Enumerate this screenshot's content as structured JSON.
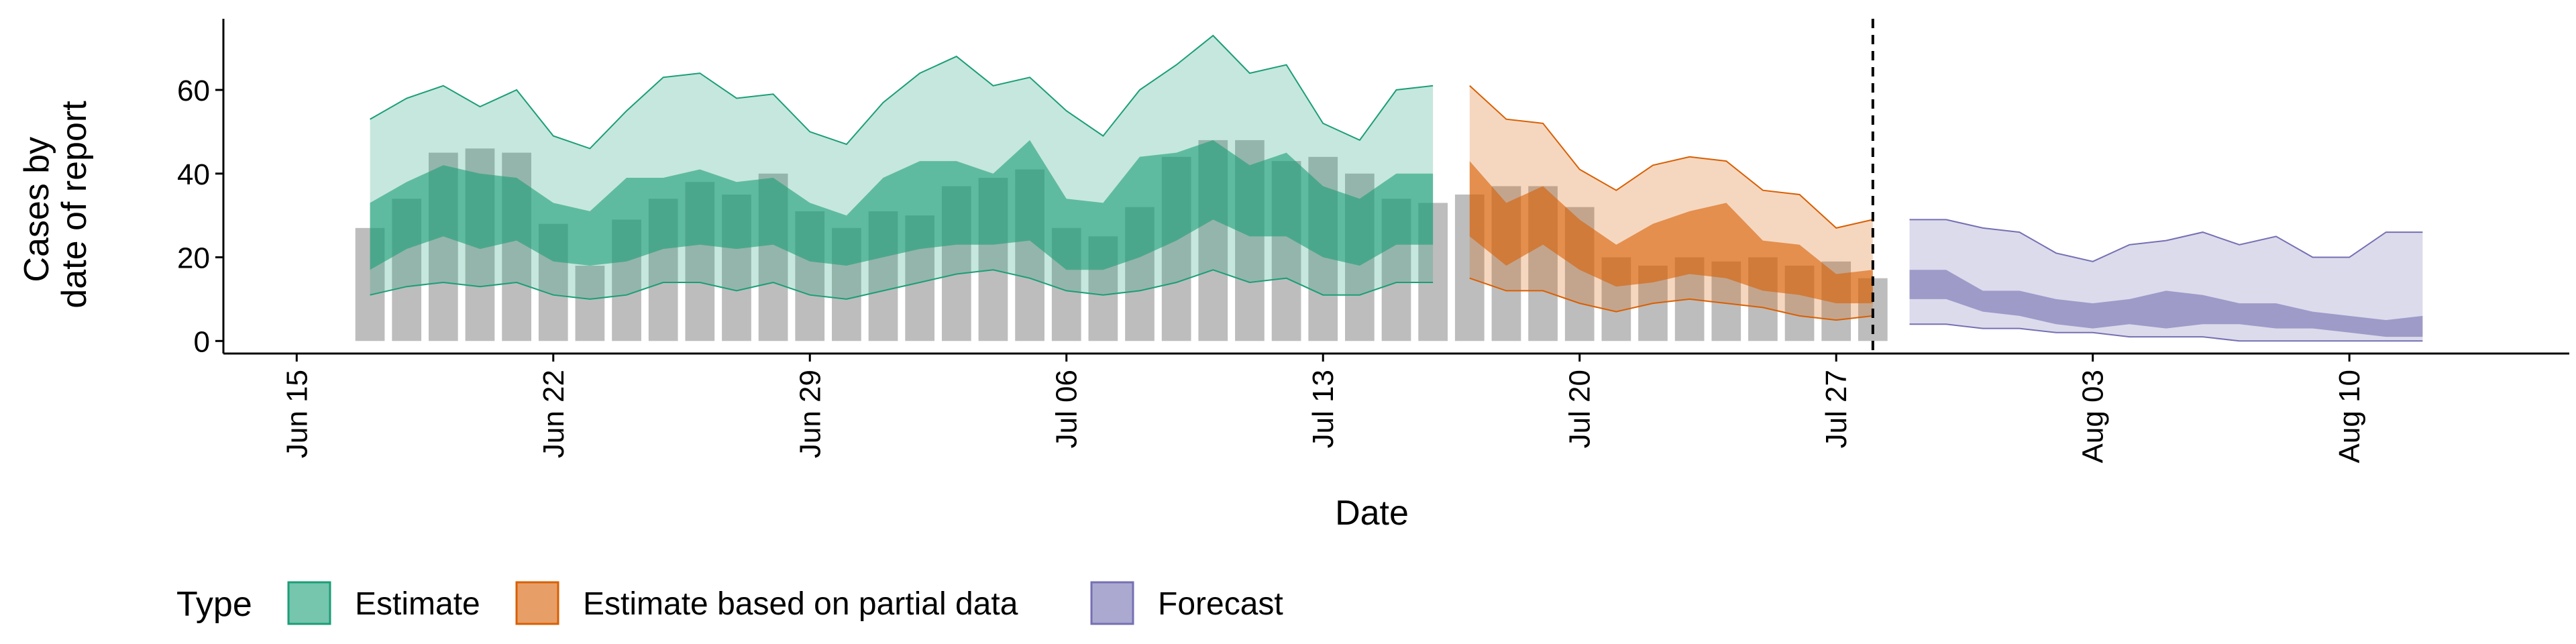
{
  "chart_data": {
    "type": "area",
    "ylabel_lines": [
      "Cases by",
      "date of report"
    ],
    "xlabel": "Date",
    "ylim": [
      -3,
      77
    ],
    "xlim": [
      "2021-06-13",
      "2021-08-16"
    ],
    "yticks": [
      0,
      20,
      40,
      60
    ],
    "xticks": [
      {
        "label": "Jun 15",
        "date": "2021-06-15"
      },
      {
        "label": "Jun 22",
        "date": "2021-06-22"
      },
      {
        "label": "Jun 29",
        "date": "2021-06-29"
      },
      {
        "label": "Jul 06",
        "date": "2021-07-06"
      },
      {
        "label": "Jul 13",
        "date": "2021-07-13"
      },
      {
        "label": "Jul 20",
        "date": "2021-07-20"
      },
      {
        "label": "Jul 27",
        "date": "2021-07-27"
      },
      {
        "label": "Aug 03",
        "date": "2021-08-03"
      },
      {
        "label": "Aug 10",
        "date": "2021-08-10"
      }
    ],
    "vline_date": "2021-07-28",
    "legend": {
      "title": "Type",
      "position": "bottom",
      "items": [
        {
          "label": "Estimate",
          "fill": "#1B9E77",
          "fill_opacity": 0.6,
          "stroke": "#1B9E77"
        },
        {
          "label": "Estimate based on partial data",
          "fill": "#D95F02",
          "fill_opacity": 0.6,
          "stroke": "#D95F02"
        },
        {
          "label": "Forecast",
          "fill": "#7570B3",
          "fill_opacity": 0.6,
          "stroke": "#7570B3"
        }
      ]
    },
    "bars": {
      "color": "#BDBDBD",
      "x": [
        "2021-06-17",
        "2021-06-18",
        "2021-06-19",
        "2021-06-20",
        "2021-06-21",
        "2021-06-22",
        "2021-06-23",
        "2021-06-24",
        "2021-06-25",
        "2021-06-26",
        "2021-06-27",
        "2021-06-28",
        "2021-06-29",
        "2021-06-30",
        "2021-07-01",
        "2021-07-02",
        "2021-07-03",
        "2021-07-04",
        "2021-07-05",
        "2021-07-06",
        "2021-07-07",
        "2021-07-08",
        "2021-07-09",
        "2021-07-10",
        "2021-07-11",
        "2021-07-12",
        "2021-07-13",
        "2021-07-14",
        "2021-07-15",
        "2021-07-16",
        "2021-07-17",
        "2021-07-18",
        "2021-07-19",
        "2021-07-20",
        "2021-07-21",
        "2021-07-22",
        "2021-07-23",
        "2021-07-24",
        "2021-07-25",
        "2021-07-26",
        "2021-07-27",
        "2021-07-28"
      ],
      "values": [
        27,
        34,
        45,
        46,
        45,
        28,
        18,
        29,
        34,
        38,
        35,
        40,
        31,
        27,
        31,
        30,
        37,
        39,
        41,
        27,
        25,
        32,
        44,
        48,
        48,
        43,
        44,
        40,
        34,
        33,
        35,
        37,
        37,
        32,
        20,
        18,
        20,
        19,
        20,
        18,
        19,
        15
      ]
    },
    "series": [
      {
        "name": "Estimate",
        "color": "#1B9E77",
        "x": [
          "2021-06-17",
          "2021-06-18",
          "2021-06-19",
          "2021-06-20",
          "2021-06-21",
          "2021-06-22",
          "2021-06-23",
          "2021-06-24",
          "2021-06-25",
          "2021-06-26",
          "2021-06-27",
          "2021-06-28",
          "2021-06-29",
          "2021-06-30",
          "2021-07-01",
          "2021-07-02",
          "2021-07-03",
          "2021-07-04",
          "2021-07-05",
          "2021-07-06",
          "2021-07-07",
          "2021-07-08",
          "2021-07-09",
          "2021-07-10",
          "2021-07-11",
          "2021-07-12",
          "2021-07-13",
          "2021-07-14",
          "2021-07-15",
          "2021-07-16"
        ],
        "lower90": [
          11,
          13,
          14,
          13,
          14,
          11,
          10,
          11,
          14,
          14,
          12,
          14,
          11,
          10,
          12,
          14,
          16,
          17,
          15,
          12,
          11,
          12,
          14,
          17,
          14,
          15,
          11,
          11,
          14,
          14
        ],
        "lower50": [
          17,
          22,
          25,
          22,
          24,
          19,
          18,
          19,
          22,
          23,
          22,
          23,
          19,
          18,
          20,
          22,
          23,
          23,
          24,
          17,
          17,
          20,
          24,
          29,
          25,
          25,
          20,
          18,
          23,
          23
        ],
        "upper50": [
          33,
          38,
          42,
          40,
          39,
          33,
          31,
          39,
          39,
          41,
          38,
          39,
          33,
          30,
          39,
          43,
          43,
          40,
          48,
          34,
          33,
          44,
          45,
          48,
          42,
          45,
          37,
          34,
          40,
          40
        ],
        "upper90": [
          53,
          58,
          61,
          56,
          60,
          49,
          46,
          55,
          63,
          64,
          58,
          59,
          50,
          47,
          57,
          64,
          68,
          61,
          63,
          55,
          49,
          60,
          66,
          73,
          64,
          66,
          52,
          48,
          60,
          61
        ]
      },
      {
        "name": "Estimate based on partial data",
        "color": "#D95F02",
        "x": [
          "2021-07-17",
          "2021-07-18",
          "2021-07-19",
          "2021-07-20",
          "2021-07-21",
          "2021-07-22",
          "2021-07-23",
          "2021-07-24",
          "2021-07-25",
          "2021-07-26",
          "2021-07-27",
          "2021-07-28"
        ],
        "lower90": [
          15,
          12,
          12,
          9,
          7,
          9,
          10,
          9,
          8,
          6,
          5,
          6
        ],
        "lower50": [
          25,
          18,
          23,
          17,
          13,
          14,
          16,
          15,
          12,
          11,
          9,
          9
        ],
        "upper50": [
          43,
          33,
          37,
          29,
          23,
          28,
          31,
          33,
          24,
          23,
          16,
          17
        ],
        "upper90": [
          61,
          53,
          52,
          41,
          36,
          42,
          44,
          43,
          36,
          35,
          27,
          29
        ]
      },
      {
        "name": "Forecast",
        "color": "#7570B3",
        "x": [
          "2021-07-29",
          "2021-07-30",
          "2021-07-31",
          "2021-08-01",
          "2021-08-02",
          "2021-08-03",
          "2021-08-04",
          "2021-08-05",
          "2021-08-06",
          "2021-08-07",
          "2021-08-08",
          "2021-08-09",
          "2021-08-10",
          "2021-08-11",
          "2021-08-12"
        ],
        "lower90": [
          4,
          4,
          3,
          3,
          2,
          2,
          1,
          1,
          1,
          0,
          0,
          0,
          0,
          0,
          0
        ],
        "lower50": [
          10,
          10,
          7,
          6,
          4,
          3,
          4,
          3,
          4,
          4,
          3,
          3,
          2,
          1,
          1
        ],
        "upper50": [
          17,
          17,
          12,
          12,
          10,
          9,
          10,
          12,
          11,
          9,
          9,
          7,
          6,
          5,
          6
        ],
        "upper90": [
          29,
          29,
          27,
          26,
          21,
          19,
          23,
          24,
          26,
          23,
          25,
          20,
          20,
          26,
          26
        ]
      }
    ]
  }
}
